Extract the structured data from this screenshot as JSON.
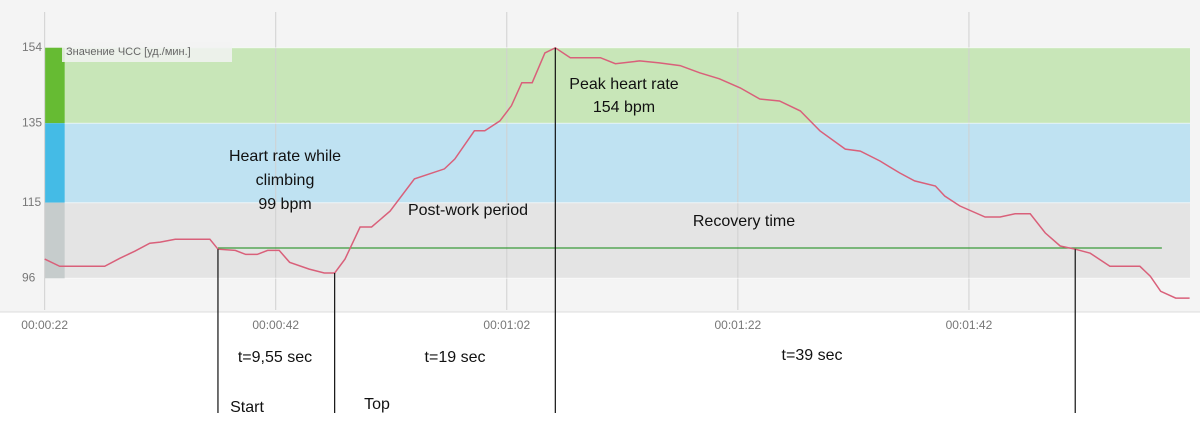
{
  "chart_data": {
    "type": "line",
    "legend": "Значение ЧСС [уд./мин.]",
    "x": [
      22,
      23.3,
      27.2,
      28.5,
      29.8,
      31.1,
      32,
      33.3,
      36.3,
      37,
      38.5,
      39.4,
      40.4,
      41.3,
      42.3,
      43.2,
      44.9,
      46.2,
      47.1,
      48,
      49.3,
      50.3,
      51.9,
      54,
      56.6,
      57.5,
      59.2,
      60.1,
      61.4,
      62.4,
      63.3,
      64.2,
      65.3,
      66.2,
      67.5,
      70.1,
      71.4,
      73.5,
      75.2,
      77,
      78.7,
      80.4,
      82.2,
      83.9,
      85.6,
      87.4,
      89.1,
      91.3,
      92.6,
      94.3,
      96,
      97.3,
      99.1,
      99.9,
      101.2,
      103.4,
      104.7,
      106,
      107.3,
      108.6,
      109.9,
      111.2,
      112.5,
      114.2,
      116.8,
      117.7,
      118.6,
      119.9,
      121.1
    ],
    "series": [
      {
        "name": "Значение ЧСС [уд./мин.]",
        "color": "#d9607a",
        "values": [
          100.8,
          99,
          99,
          101,
          102.8,
          104.8,
          105.1,
          105.8,
          105.8,
          103.3,
          103,
          102,
          102,
          103,
          103,
          100,
          98.3,
          97.3,
          97.3,
          100.8,
          108.9,
          108.9,
          112.9,
          121,
          123.5,
          126,
          133.1,
          133.1,
          135.6,
          139.4,
          145.2,
          145.2,
          152.7,
          154,
          151.5,
          151.5,
          150,
          150.7,
          150.2,
          149.5,
          147.7,
          146.2,
          143.9,
          141.1,
          140.6,
          138.1,
          133.1,
          128.5,
          128,
          125.5,
          122.5,
          120.5,
          119.2,
          116.7,
          114.2,
          111.4,
          111.4,
          112.2,
          112.2,
          107.4,
          104.1,
          103.3,
          102.3,
          99,
          99,
          96.5,
          92.7,
          91,
          91
        ]
      }
    ],
    "bands": [
      {
        "from": 135,
        "to": 154,
        "color": "#c8e6b8",
        "strip": "#66bb33"
      },
      {
        "from": 115,
        "to": 135,
        "color": "#bfe2f2",
        "strip": "#44bbe6"
      },
      {
        "from": 96,
        "to": 115,
        "color": "#e4e4e4",
        "strip": "#c6cccc"
      }
    ],
    "reference": {
      "value": 103.6,
      "x": [
        37,
        118.7
      ],
      "color": "#3a9a3a"
    },
    "markers": [
      {
        "x": 37,
        "y": 103.3
      },
      {
        "x": 47.1,
        "y": 97.3
      },
      {
        "x": 66.2,
        "y": 154
      },
      {
        "x": 111.2,
        "y": 103.3
      }
    ],
    "xlim": [
      19,
      122
    ],
    "ylim": [
      88,
      163
    ],
    "yticks": [
      96,
      115,
      135,
      154
    ],
    "xticks": [
      {
        "value": 22,
        "label": "00:00:22"
      },
      {
        "value": 42,
        "label": "00:00:42"
      },
      {
        "value": 62,
        "label": "00:01:02"
      },
      {
        "value": 82,
        "label": "00:01:22"
      },
      {
        "value": 102,
        "label": "00:01:42"
      }
    ],
    "grid": true,
    "annotations": [
      {
        "lines": [
          "Heart rate while",
          "climbing",
          "99 bpm"
        ]
      },
      {
        "lines": [
          "Post-work period"
        ]
      },
      {
        "lines": [
          "Peak heart rate",
          "154 bpm"
        ]
      },
      {
        "lines": [
          "Recovery time"
        ]
      },
      {
        "lines": [
          "t=9,55 sec"
        ]
      },
      {
        "lines": [
          "t=19 sec"
        ]
      },
      {
        "lines": [
          "t=39 sec"
        ]
      },
      {
        "lines": [
          "Start"
        ]
      },
      {
        "lines": [
          "Top"
        ]
      }
    ]
  }
}
